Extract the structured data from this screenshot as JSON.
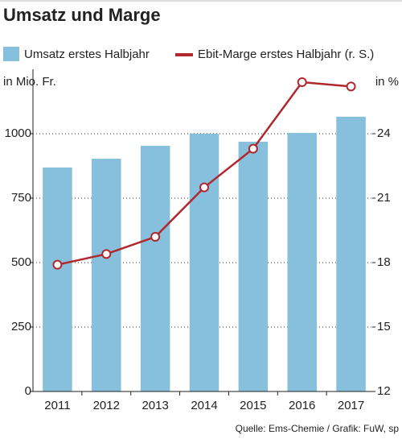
{
  "chart_data": {
    "type": "bar_line",
    "title": "Umsatz und Marge",
    "y_label": "in Mio. Fr.",
    "y2_label": "in %",
    "source": "Quelle: Ems-Chemie / Grafik: FuW, sp",
    "categories": [
      "2011",
      "2012",
      "2013",
      "2014",
      "2015",
      "2016",
      "2017"
    ],
    "series": [
      {
        "name": "Umsatz erstes Halbjahr",
        "type": "bar",
        "color": "#86c0dc",
        "values": [
          869,
          903,
          953,
          1000,
          969,
          1003,
          1066
        ]
      },
      {
        "name": "Ebit-Marge erstes Halbjahr (r. S.)",
        "type": "line",
        "axis": "y2",
        "color": "#b0282d",
        "values": [
          17.9,
          18.4,
          19.2,
          21.5,
          23.3,
          26.4,
          26.2
        ]
      }
    ],
    "ylim": [
      0,
      1250
    ],
    "yticks": [
      0,
      250,
      500,
      750,
      1000
    ],
    "y2lim": [
      12,
      27
    ],
    "y2ticks": [
      12,
      15,
      18,
      21,
      24
    ],
    "grid": true
  }
}
